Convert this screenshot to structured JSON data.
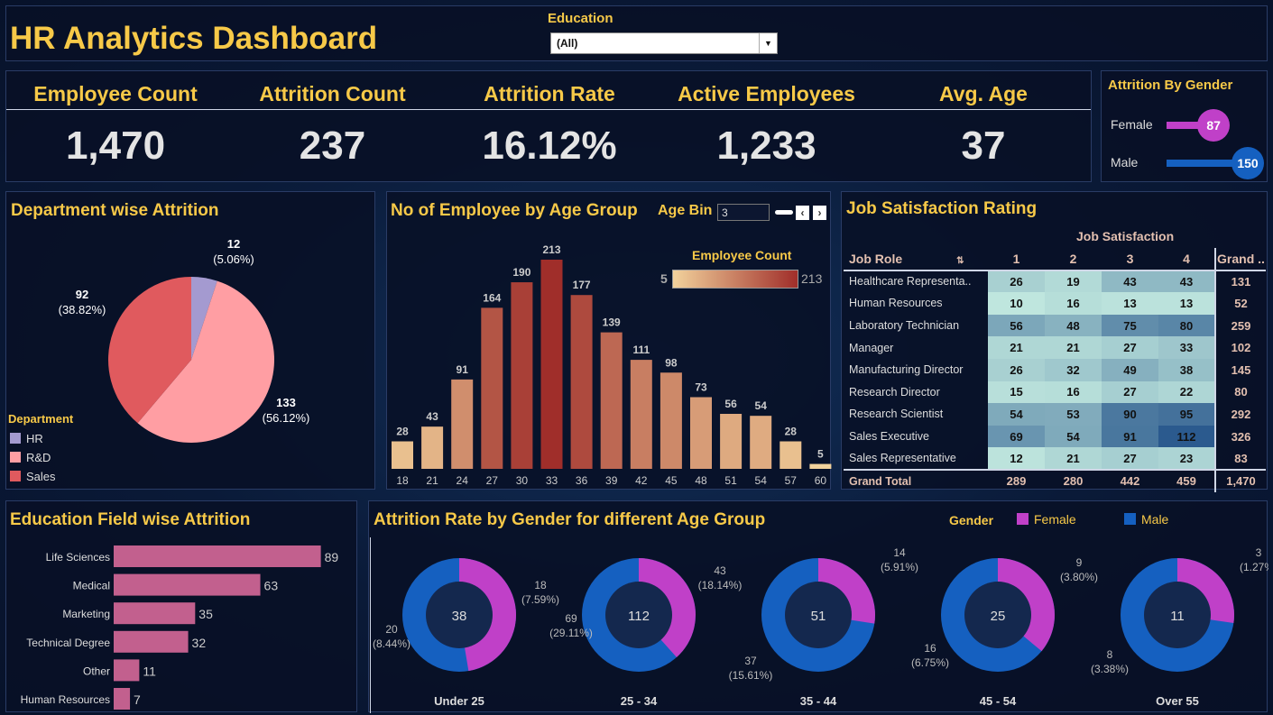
{
  "header": {
    "title": "HR Analytics Dashboard",
    "filter_label": "Education",
    "filter_value": "(All)"
  },
  "kpis": [
    {
      "label": "Employee Count",
      "value": "1,470"
    },
    {
      "label": "Attrition Count",
      "value": "237"
    },
    {
      "label": "Attrition Rate",
      "value": "16.12%"
    },
    {
      "label": "Active Employees",
      "value": "1,233"
    },
    {
      "label": "Avg. Age",
      "value": "37"
    }
  ],
  "gender_attrition": {
    "title": "Attrition By Gender",
    "items": [
      {
        "label": "Female",
        "value": "87",
        "color": "#c040c8"
      },
      {
        "label": "Male",
        "value": "150",
        "color": "#1560c0"
      }
    ]
  },
  "dept": {
    "title": "Department wise Attrition",
    "legend_title": "Department",
    "chart_data": {
      "type": "pie",
      "slices": [
        {
          "label": "HR",
          "value": 12,
          "pct": "(5.06%)",
          "color": "#a49ad0"
        },
        {
          "label": "R&D",
          "value": 133,
          "pct": "(56.12%)",
          "color": "#ff9ea3"
        },
        {
          "label": "Sales",
          "value": 92,
          "pct": "(38.82%)",
          "color": "#e05a5e"
        }
      ]
    }
  },
  "age": {
    "title": "No of Employee by Age Group",
    "param_label": "Age Bin",
    "param_value": "3",
    "legend_title": "Employee Count",
    "legend_min": "5",
    "legend_max": "213",
    "chart_data": {
      "type": "bar",
      "categories": [
        "18",
        "21",
        "24",
        "27",
        "30",
        "33",
        "36",
        "39",
        "42",
        "45",
        "48",
        "51",
        "54",
        "57",
        "60"
      ],
      "values": [
        28,
        43,
        91,
        164,
        190,
        213,
        177,
        139,
        111,
        98,
        73,
        56,
        54,
        28,
        5
      ],
      "color_range": [
        "#f2d29c",
        "#a02e2a"
      ]
    }
  },
  "job": {
    "title": "Job Satisfaction Rating",
    "col_group": "Job Satisfaction",
    "row_header": "Job Role",
    "columns": [
      "1",
      "2",
      "3",
      "4"
    ],
    "grand_label": "Grand ..",
    "chart_data": {
      "type": "heatmap",
      "rows": [
        {
          "role": "Healthcare Representa..",
          "values": [
            26,
            19,
            43,
            43
          ],
          "total": "131"
        },
        {
          "role": "Human Resources",
          "values": [
            10,
            16,
            13,
            13
          ],
          "total": "52"
        },
        {
          "role": "Laboratory Technician",
          "values": [
            56,
            48,
            75,
            80
          ],
          "total": "259"
        },
        {
          "role": "Manager",
          "values": [
            21,
            21,
            27,
            33
          ],
          "total": "102"
        },
        {
          "role": "Manufacturing Director",
          "values": [
            26,
            32,
            49,
            38
          ],
          "total": "145"
        },
        {
          "role": "Research Director",
          "values": [
            15,
            16,
            27,
            22
          ],
          "total": "80"
        },
        {
          "role": "Research Scientist",
          "values": [
            54,
            53,
            90,
            95
          ],
          "total": "292"
        },
        {
          "role": "Sales Executive",
          "values": [
            69,
            54,
            91,
            112
          ],
          "total": "326"
        },
        {
          "role": "Sales Representative",
          "values": [
            12,
            21,
            27,
            23
          ],
          "total": "83"
        }
      ],
      "grand_total": {
        "label": "Grand Total",
        "values": [
          "289",
          "280",
          "442",
          "459"
        ],
        "total": "1,470"
      }
    }
  },
  "edu": {
    "title": "Education Field wise Attrition",
    "chart_data": {
      "type": "bar",
      "orientation": "horizontal",
      "categories": [
        "Life Sciences",
        "Medical",
        "Marketing",
        "Technical Degree",
        "Other",
        "Human Resources"
      ],
      "values": [
        89,
        63,
        35,
        32,
        11,
        7
      ],
      "color": "#c2608e"
    }
  },
  "gender_age": {
    "title": "Attrition Rate by Gender for different Age Group",
    "legend_title": "Gender",
    "legend": [
      {
        "label": "Female",
        "color": "#c040c8"
      },
      {
        "label": "Male",
        "color": "#1560c0"
      }
    ],
    "chart_data": {
      "type": "pie",
      "groups": [
        {
          "label": "Under 25",
          "total": "38",
          "female": 18,
          "female_pct": "(7.59%)",
          "male": 20,
          "male_pct": "(8.44%)"
        },
        {
          "label": "25 - 34",
          "total": "112",
          "female": 43,
          "female_pct": "(18.14%)",
          "male": 69,
          "male_pct": "(29.11%)"
        },
        {
          "label": "35 - 44",
          "total": "51",
          "female": 14,
          "female_pct": "(5.91%)",
          "male": 37,
          "male_pct": "(15.61%)"
        },
        {
          "label": "45 - 54",
          "total": "25",
          "female": 9,
          "female_pct": "(3.80%)",
          "male": 16,
          "male_pct": "(6.75%)"
        },
        {
          "label": "Over 55",
          "total": "11",
          "female": 3,
          "female_pct": "(1.27%)",
          "male": 8,
          "male_pct": "(3.38%)"
        }
      ]
    }
  }
}
